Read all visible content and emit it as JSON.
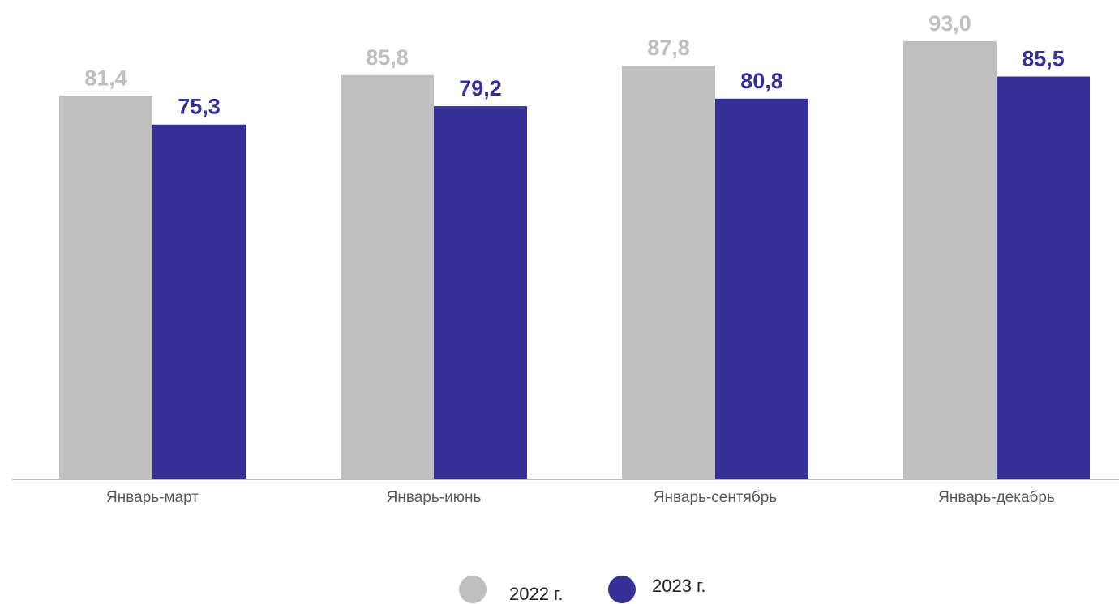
{
  "chart_data": {
    "type": "bar",
    "categories": [
      "Январь-март",
      "Январь-июнь",
      "Январь-сентябрь",
      "Январь-декабрь"
    ],
    "series": [
      {
        "name": "2022 г.",
        "values": [
          81.4,
          85.8,
          87.8,
          93.0
        ],
        "labels": [
          "81,4",
          "85,8",
          "87,8",
          "93,0"
        ],
        "color": "#bfbfbf"
      },
      {
        "name": "2023 г.",
        "values": [
          75.3,
          79.2,
          80.8,
          85.5
        ],
        "labels": [
          "75,3",
          "79,2",
          "80,8",
          "85,5"
        ],
        "color": "#353096"
      }
    ],
    "ylim": [
      0,
      100
    ],
    "grid": false,
    "legend_position": "bottom-center",
    "axis_color": "#bfbfbf",
    "category_label_color": "#595959"
  }
}
